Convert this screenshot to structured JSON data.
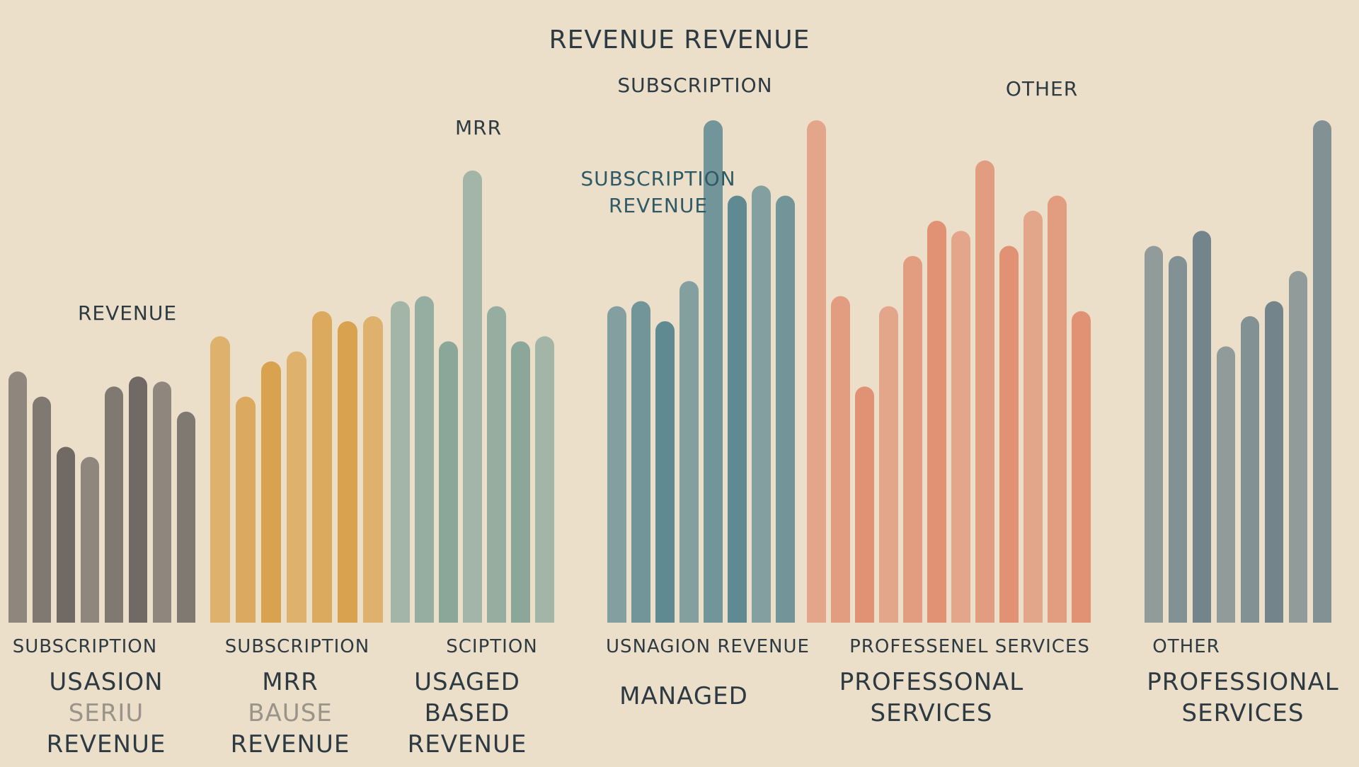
{
  "chart_data": {
    "type": "bar",
    "title": "REVENUE REVENUE",
    "xlabel": "",
    "ylabel": "",
    "ylim": [
      0,
      100
    ],
    "grid": false,
    "legend": "none",
    "groups": [
      {
        "top_label": "SUBSCRIPTION",
        "bottom_label_lines": [
          "USASION",
          "SERIU",
          "REVENUE"
        ],
        "annotation": "REVENUE",
        "color": "#6b6560",
        "values": [
          50,
          45,
          35,
          33,
          47,
          49,
          48,
          42
        ]
      },
      {
        "top_label": "SUBSCRIPTION",
        "bottom_label_lines": [
          "MRR",
          "BAUSE",
          "REVENUE"
        ],
        "annotation": "",
        "color": "#d8a04a",
        "values": [
          57,
          45,
          52,
          54,
          62,
          60,
          61
        ]
      },
      {
        "top_label": "SCIPTION",
        "bottom_label_lines": [
          "USAGED",
          "BASED",
          "REVENUE"
        ],
        "annotation": "MRR",
        "color": "#86a598",
        "values": [
          64,
          65,
          56,
          90,
          63,
          56,
          57
        ]
      },
      {
        "top_label": "USNAGION REVENUE",
        "bottom_label_lines": [
          "MANAGED"
        ],
        "annotation": "SUBSCRIPTION",
        "annotation2_lines": [
          "SUBSCRIPTION",
          "REVENUE"
        ],
        "color": "#5b8790",
        "values": [
          63,
          64,
          60,
          68,
          100,
          85,
          87,
          85
        ]
      },
      {
        "top_label": "PROFESSENEL SERVICES",
        "bottom_label_lines": [
          "PROFESSONAL",
          "SERVICES"
        ],
        "annotation": "",
        "color": "#e09072",
        "values": [
          100,
          65,
          47,
          63,
          73,
          80,
          78,
          92,
          75,
          82,
          85,
          62
        ]
      },
      {
        "top_label": "OTHER",
        "bottom_label_lines": [
          "PROFESSIONAL",
          "SERVICES"
        ],
        "annotation": "OTHER",
        "color": "#6e8288",
        "values": [
          75,
          73,
          78,
          55,
          61,
          64,
          70,
          100
        ]
      }
    ]
  }
}
